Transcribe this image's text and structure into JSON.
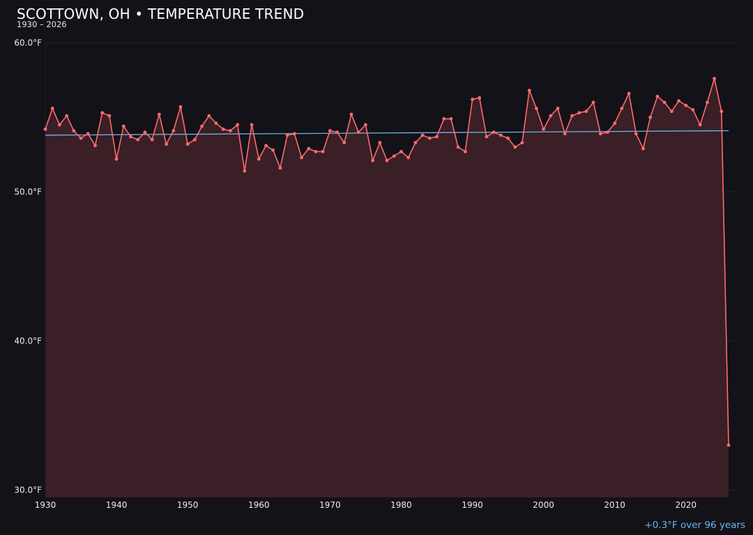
{
  "chart_data": {
    "type": "line",
    "title": "SCOTTOWN, OH • TEMPERATURE TREND",
    "subtitle": "1930 – 2026",
    "trend_caption": "+0.3°F over 96 years",
    "xlim": [
      1930,
      2026
    ],
    "ylim": [
      29.5,
      61.0
    ],
    "x_ticks": [
      1930,
      1940,
      1950,
      1960,
      1970,
      1980,
      1990,
      2000,
      2010,
      2020
    ],
    "y_ticks": [
      30,
      40,
      50,
      60
    ],
    "y_tick_labels": [
      "30.0°F",
      "40.0°F",
      "50.0°F",
      "60.0°F"
    ],
    "grid": true,
    "series": [
      {
        "kind": "observed",
        "color": "#ff6b6e",
        "fill_color": "#3a1f26",
        "x": [
          1930,
          1931,
          1932,
          1933,
          1934,
          1935,
          1936,
          1937,
          1938,
          1939,
          1940,
          1941,
          1942,
          1943,
          1944,
          1945,
          1946,
          1947,
          1948,
          1949,
          1950,
          1951,
          1952,
          1953,
          1954,
          1955,
          1956,
          1957,
          1958,
          1959,
          1960,
          1961,
          1962,
          1963,
          1964,
          1965,
          1966,
          1967,
          1968,
          1969,
          1970,
          1971,
          1972,
          1973,
          1974,
          1975,
          1976,
          1977,
          1978,
          1979,
          1980,
          1981,
          1982,
          1983,
          1984,
          1985,
          1986,
          1987,
          1988,
          1989,
          1990,
          1991,
          1992,
          1993,
          1994,
          1995,
          1996,
          1997,
          1998,
          1999,
          2000,
          2001,
          2002,
          2003,
          2004,
          2005,
          2006,
          2007,
          2008,
          2009,
          2010,
          2011,
          2012,
          2013,
          2014,
          2015,
          2016,
          2017,
          2018,
          2019,
          2020,
          2021,
          2022,
          2023,
          2024,
          2025,
          2026
        ],
        "values": [
          54.2,
          55.6,
          54.5,
          55.1,
          54.1,
          53.6,
          53.9,
          53.1,
          55.3,
          55.1,
          52.2,
          54.4,
          53.7,
          53.5,
          54.0,
          53.5,
          55.2,
          53.2,
          54.1,
          55.7,
          53.2,
          53.5,
          54.4,
          55.1,
          54.6,
          54.2,
          54.1,
          54.5,
          51.4,
          54.5,
          52.2,
          53.1,
          52.8,
          51.6,
          53.8,
          53.9,
          52.3,
          52.9,
          52.7,
          52.7,
          54.1,
          54.0,
          53.3,
          55.2,
          54.0,
          54.5,
          52.1,
          53.3,
          52.1,
          52.4,
          52.7,
          52.3,
          53.3,
          53.8,
          53.6,
          53.7,
          54.9,
          54.9,
          53.0,
          52.7,
          56.2,
          56.3,
          53.7,
          54.0,
          53.8,
          53.6,
          53.0,
          53.3,
          56.8,
          55.6,
          54.2,
          55.1,
          55.6,
          53.9,
          55.1,
          55.3,
          55.4,
          56.0,
          53.9,
          54.0,
          54.6,
          55.6,
          56.6,
          53.9,
          52.9,
          55.0,
          56.4,
          56.0,
          55.4,
          56.1,
          55.8,
          55.5,
          54.5,
          56.0,
          57.6,
          55.4,
          33.0
        ]
      },
      {
        "kind": "trend",
        "color": "#6ab6ee",
        "x": [
          1930,
          2026
        ],
        "values": [
          53.8,
          54.1
        ]
      }
    ]
  }
}
